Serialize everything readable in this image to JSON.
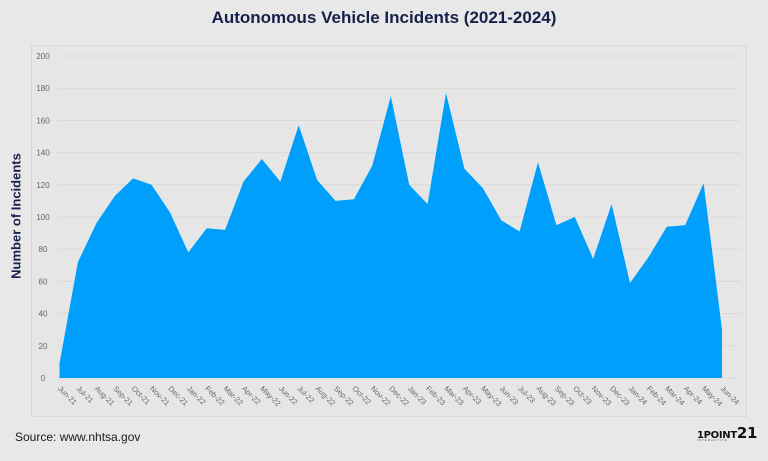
{
  "title": "Autonomous Vehicle Incidents (2021-2024)",
  "source": "Source: www.nhtsa.gov",
  "logo": {
    "brand": "1POINT",
    "number": "21",
    "tagline": "INTERACTIVE"
  },
  "colors": {
    "area": "#009ffc",
    "title": "#16204a",
    "background": "#e8e8e8",
    "grid": "#d9d9d9"
  },
  "chart_data": {
    "type": "area",
    "title": "Autonomous Vehicle Incidents (2021-2024)",
    "xlabel": "",
    "ylabel": "Number of Incidents",
    "ylim": [
      0,
      200
    ],
    "yticks": [
      0,
      20,
      40,
      60,
      80,
      100,
      120,
      140,
      160,
      180,
      200
    ],
    "grid": true,
    "legend": null,
    "categories": [
      "Jun-21",
      "Jul-21",
      "Aug-21",
      "Sep-21",
      "Oct-21",
      "Nov-21",
      "Dec-21",
      "Jan-22",
      "Feb-22",
      "Mar-22",
      "Apr-22",
      "May-22",
      "Jun-22",
      "Jul-22",
      "Aug-22",
      "Sep-22",
      "Oct-22",
      "Nov-22",
      "Dec-22",
      "Jan-23",
      "Feb-23",
      "Mar-23",
      "Apr-23",
      "May-23",
      "Jun-23",
      "Jul-23",
      "Aug-23",
      "Sep-23",
      "Oct-23",
      "Nov-23",
      "Dec-23",
      "Jan-24",
      "Feb-24",
      "Mar-24",
      "Apr-24",
      "May-24",
      "Jun-24"
    ],
    "values": [
      9,
      72,
      96,
      113,
      124,
      120,
      103,
      78,
      93,
      92,
      122,
      136,
      122,
      157,
      123,
      110,
      111,
      132,
      175,
      120,
      108,
      177,
      130,
      118,
      98,
      91,
      134,
      95,
      100,
      74,
      108,
      59,
      75,
      94,
      95,
      121,
      30
    ]
  }
}
